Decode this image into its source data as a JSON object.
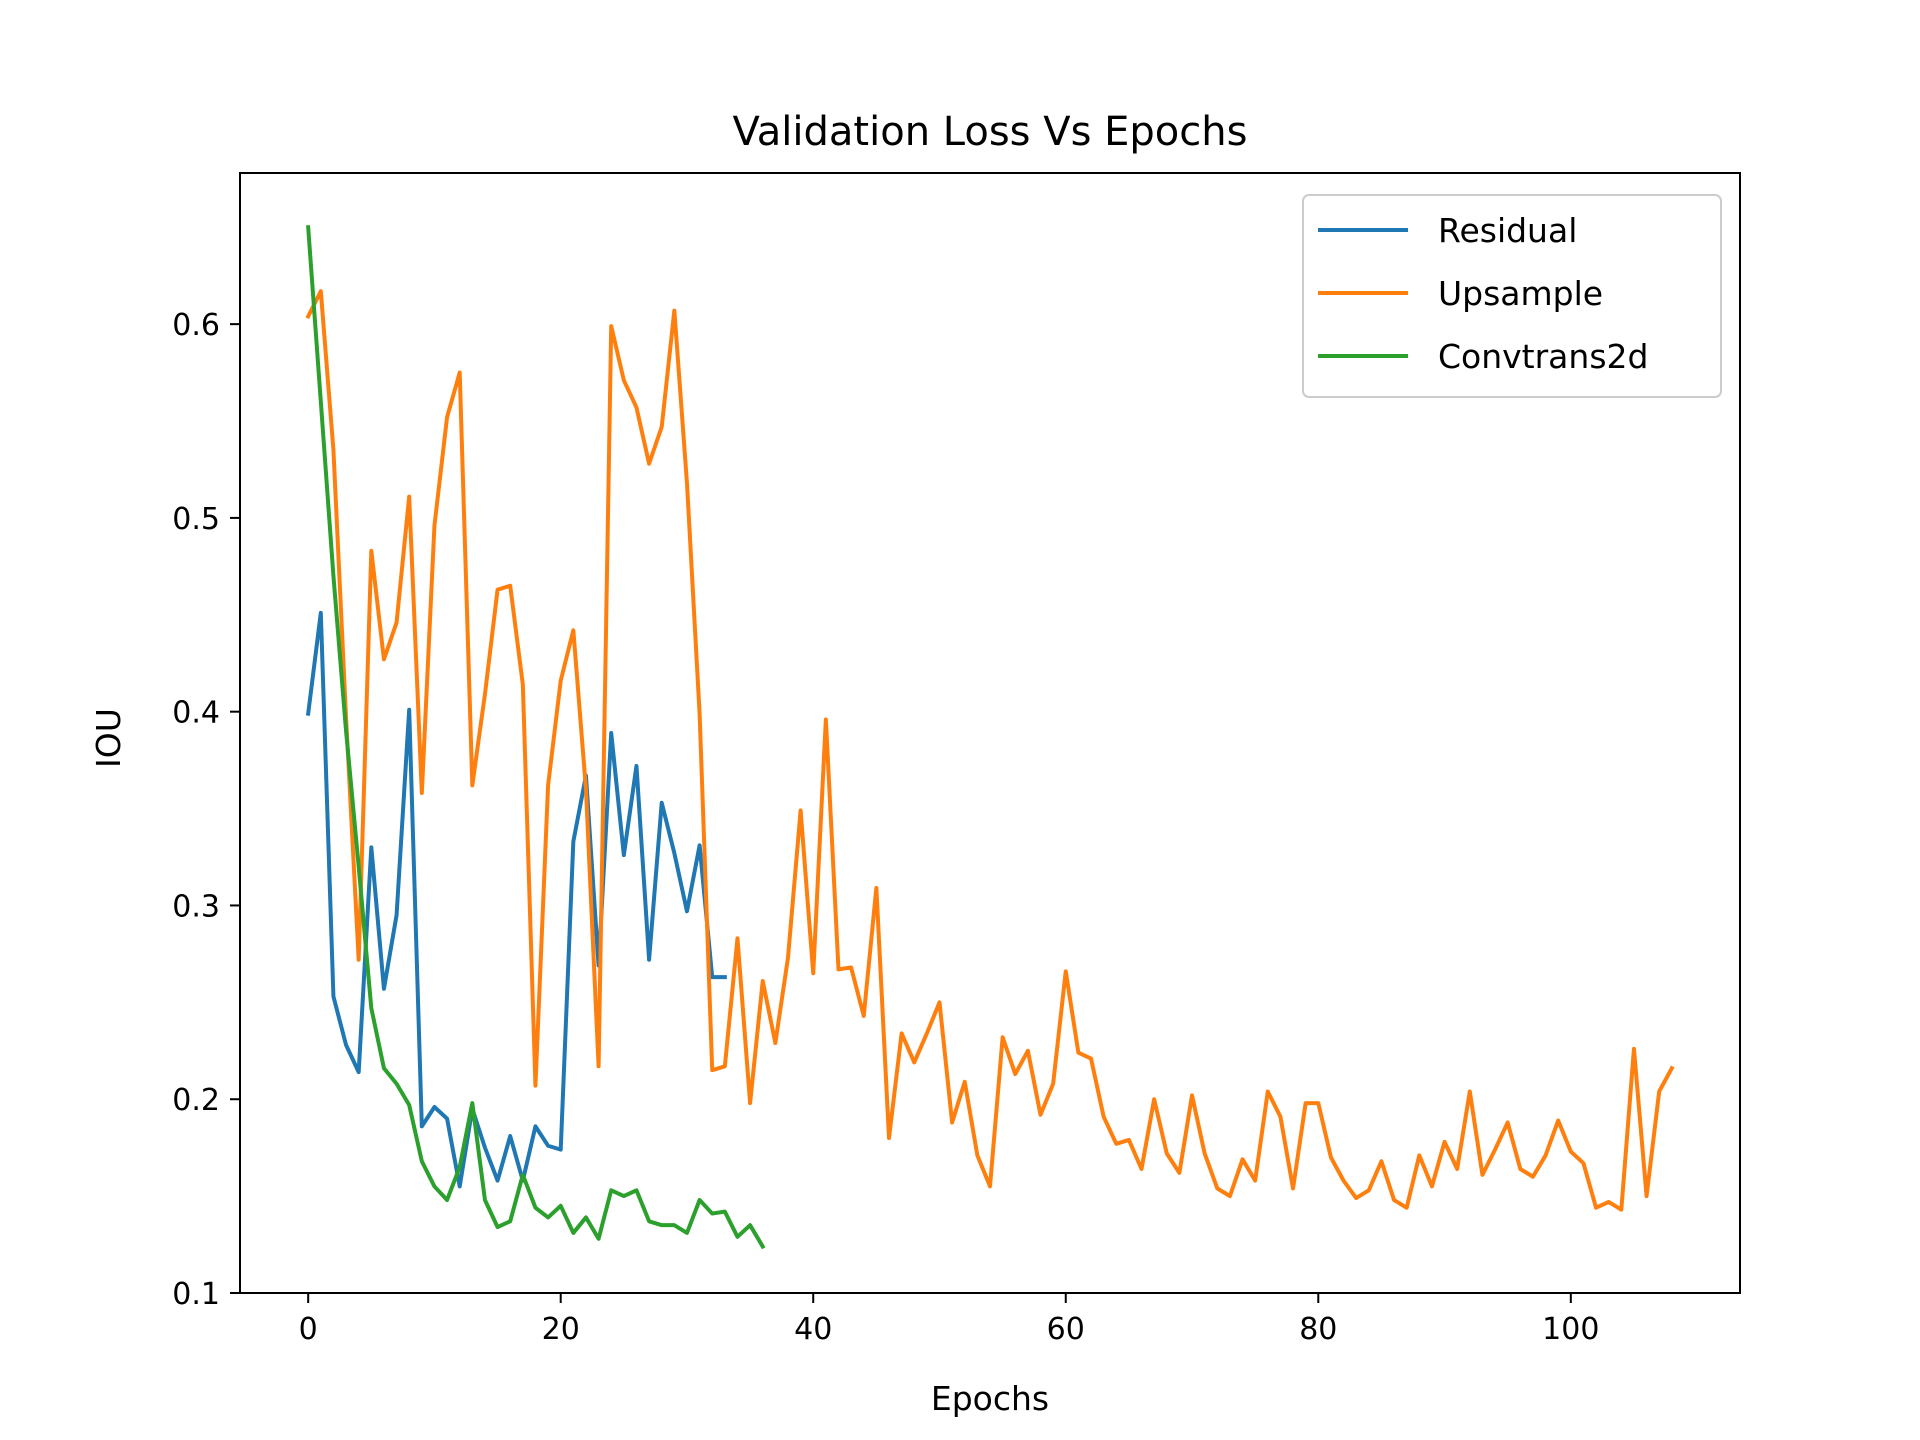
{
  "chart_data": {
    "type": "line",
    "title": "Validation Loss Vs Epochs",
    "xlabel": "Epochs",
    "ylabel": "IOU",
    "xlim": [
      -5.4,
      113.4
    ],
    "ylim": [
      0.1,
      0.678
    ],
    "xticks": [
      0,
      20,
      40,
      60,
      80,
      100
    ],
    "yticks": [
      0.1,
      0.2,
      0.3,
      0.4,
      0.5,
      0.6
    ],
    "xtick_labels": [
      "0",
      "20",
      "40",
      "60",
      "80",
      "100"
    ],
    "ytick_labels": [
      "0.1",
      "0.2",
      "0.3",
      "0.4",
      "0.5",
      "0.6"
    ],
    "legend_position": "top-right",
    "grid": false,
    "series": [
      {
        "name": "Residual",
        "color": "#1f77b4",
        "x": [
          0,
          1,
          2,
          3,
          4,
          5,
          6,
          7,
          8,
          9,
          10,
          11,
          12,
          13,
          14,
          15,
          16,
          17,
          18,
          19,
          20,
          21,
          22,
          23,
          24,
          25,
          26,
          27,
          28,
          29,
          30,
          31,
          32,
          33
        ],
        "values": [
          0.399,
          0.451,
          0.253,
          0.228,
          0.214,
          0.33,
          0.257,
          0.295,
          0.401,
          0.186,
          0.196,
          0.19,
          0.155,
          0.195,
          0.175,
          0.158,
          0.181,
          0.158,
          0.186,
          0.176,
          0.174,
          0.333,
          0.367,
          0.269,
          0.389,
          0.326,
          0.372,
          0.272,
          0.353,
          0.327,
          0.297,
          0.331,
          0.263,
          0.263
        ]
      },
      {
        "name": "Upsample",
        "color": "#ff7f0e",
        "x": [
          0,
          1,
          2,
          3,
          4,
          5,
          6,
          7,
          8,
          9,
          10,
          11,
          12,
          13,
          14,
          15,
          16,
          17,
          18,
          19,
          20,
          21,
          22,
          23,
          24,
          25,
          26,
          27,
          28,
          29,
          30,
          31,
          32,
          33,
          34,
          35,
          36,
          37,
          38,
          39,
          40,
          41,
          42,
          43,
          44,
          45,
          46,
          47,
          48,
          49,
          50,
          51,
          52,
          53,
          54,
          55,
          56,
          57,
          58,
          59,
          60,
          61,
          62,
          63,
          64,
          65,
          66,
          67,
          68,
          69,
          70,
          71,
          72,
          73,
          74,
          75,
          76,
          77,
          78,
          79,
          80,
          81,
          82,
          83,
          84,
          85,
          86,
          87,
          88,
          89,
          90,
          91,
          92,
          93,
          94,
          95,
          96,
          97,
          98,
          99,
          100,
          101,
          102,
          103,
          104,
          105,
          106,
          107,
          108
        ],
        "values": [
          0.604,
          0.617,
          0.535,
          0.397,
          0.272,
          0.483,
          0.427,
          0.446,
          0.511,
          0.358,
          0.496,
          0.552,
          0.575,
          0.362,
          0.409,
          0.463,
          0.465,
          0.414,
          0.207,
          0.362,
          0.416,
          0.442,
          0.36,
          0.217,
          0.599,
          0.571,
          0.557,
          0.528,
          0.547,
          0.607,
          0.518,
          0.399,
          0.215,
          0.217,
          0.283,
          0.198,
          0.261,
          0.229,
          0.273,
          0.349,
          0.265,
          0.396,
          0.267,
          0.268,
          0.243,
          0.309,
          0.18,
          0.234,
          0.219,
          0.234,
          0.25,
          0.188,
          0.209,
          0.171,
          0.155,
          0.232,
          0.213,
          0.225,
          0.192,
          0.208,
          0.266,
          0.224,
          0.221,
          0.191,
          0.177,
          0.179,
          0.164,
          0.2,
          0.172,
          0.162,
          0.202,
          0.172,
          0.154,
          0.15,
          0.169,
          0.158,
          0.204,
          0.191,
          0.154,
          0.198,
          0.198,
          0.17,
          0.158,
          0.149,
          0.153,
          0.168,
          0.148,
          0.144,
          0.171,
          0.155,
          0.178,
          0.164,
          0.204,
          0.161,
          0.174,
          0.188,
          0.164,
          0.16,
          0.171,
          0.189,
          0.173,
          0.167,
          0.144,
          0.147,
          0.143,
          0.226,
          0.15,
          0.204,
          0.216
        ]
      },
      {
        "name": "Convtrans2d",
        "color": "#2ca02c",
        "x": [
          0,
          1,
          2,
          3,
          4,
          5,
          6,
          7,
          8,
          9,
          10,
          11,
          12,
          13,
          14,
          15,
          16,
          17,
          18,
          19,
          20,
          21,
          22,
          23,
          24,
          25,
          26,
          27,
          28,
          29,
          30,
          31,
          32,
          33,
          34,
          35,
          36
        ],
        "values": [
          0.65,
          0.56,
          0.47,
          0.39,
          0.32,
          0.247,
          0.216,
          0.208,
          0.197,
          0.168,
          0.155,
          0.148,
          0.165,
          0.198,
          0.148,
          0.134,
          0.137,
          0.161,
          0.144,
          0.139,
          0.145,
          0.131,
          0.139,
          0.128,
          0.153,
          0.15,
          0.153,
          0.137,
          0.135,
          0.135,
          0.131,
          0.148,
          0.141,
          0.142,
          0.129,
          0.135,
          0.124
        ]
      }
    ]
  }
}
